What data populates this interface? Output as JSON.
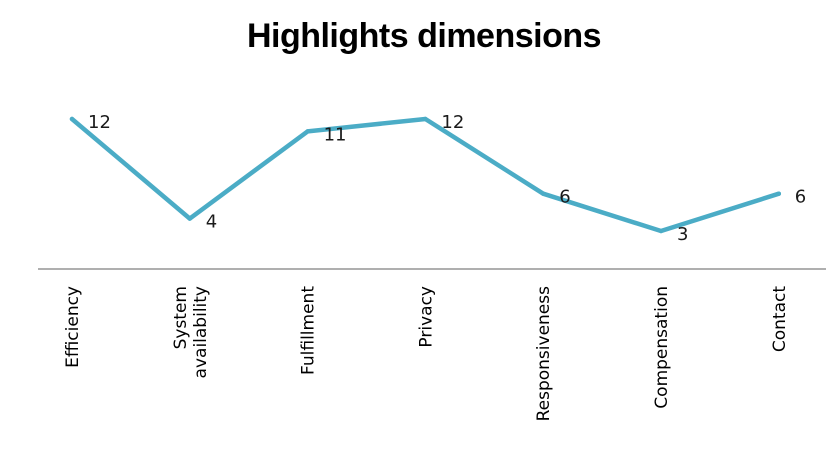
{
  "chart_data": {
    "type": "line",
    "title": "Highlights dimensions",
    "categories": [
      "Efficiency",
      "System availability",
      "Fulfillment",
      "Privacy",
      "Responsiveness",
      "Compensation",
      "Contact"
    ],
    "category_lines": [
      [
        "Efficiency"
      ],
      [
        "System",
        "availability"
      ],
      [
        "Fulfillment"
      ],
      [
        "Privacy"
      ],
      [
        "Responsiveness"
      ],
      [
        "Compensation"
      ],
      [
        "Contact"
      ]
    ],
    "series": [
      {
        "values": [
          12,
          4,
          11,
          12,
          6,
          3,
          6
        ],
        "color": "#4BACC6"
      }
    ],
    "xlabel": "",
    "ylabel": "",
    "ylim": [
      0,
      14
    ],
    "grid": false,
    "legend": "none",
    "data_labels": true
  }
}
